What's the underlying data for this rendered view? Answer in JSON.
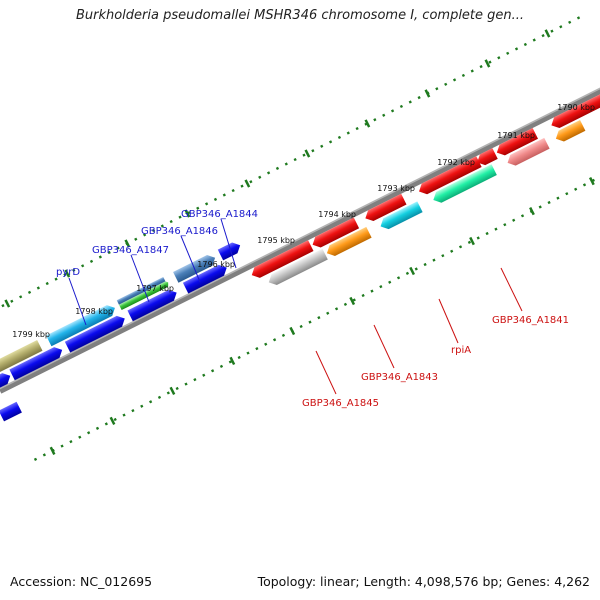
{
  "title": "Burkholderia pseudomallei MSHR346 chromosome I, complete gen...",
  "footer": {
    "accession": "Accession: NC_012695",
    "summary": "Topology: linear; Length: 4,098,576 bp; Genes: 4,262"
  },
  "ticks": [
    {
      "label": "1790 kbp",
      "kbp": 1790
    },
    {
      "label": "1791 kbp",
      "kbp": 1791
    },
    {
      "label": "1792 kbp",
      "kbp": 1792
    },
    {
      "label": "1793 kbp",
      "kbp": 1793
    },
    {
      "label": "1794 kbp",
      "kbp": 1794
    },
    {
      "label": "1795 kbp",
      "kbp": 1795
    },
    {
      "label": "1796 kbp",
      "kbp": 1796
    },
    {
      "label": "1797 kbp",
      "kbp": 1797
    },
    {
      "label": "1798 kbp",
      "kbp": 1798
    },
    {
      "label": "1799 kbp",
      "kbp": 1799
    }
  ],
  "gene_labels": {
    "top": [
      "GBP346_A1844",
      "GBP346_A1846",
      "GBP346_A1847",
      "pyrD"
    ],
    "bottom": [
      "GBP346_A1841",
      "rpiA",
      "GBP346_A1843",
      "GBP346_A1845"
    ]
  },
  "colors": {
    "label_top": "#1a1acc",
    "label_bottom": "#cc1111",
    "tick": "#1f7a1f",
    "backbone": "#808080"
  }
}
